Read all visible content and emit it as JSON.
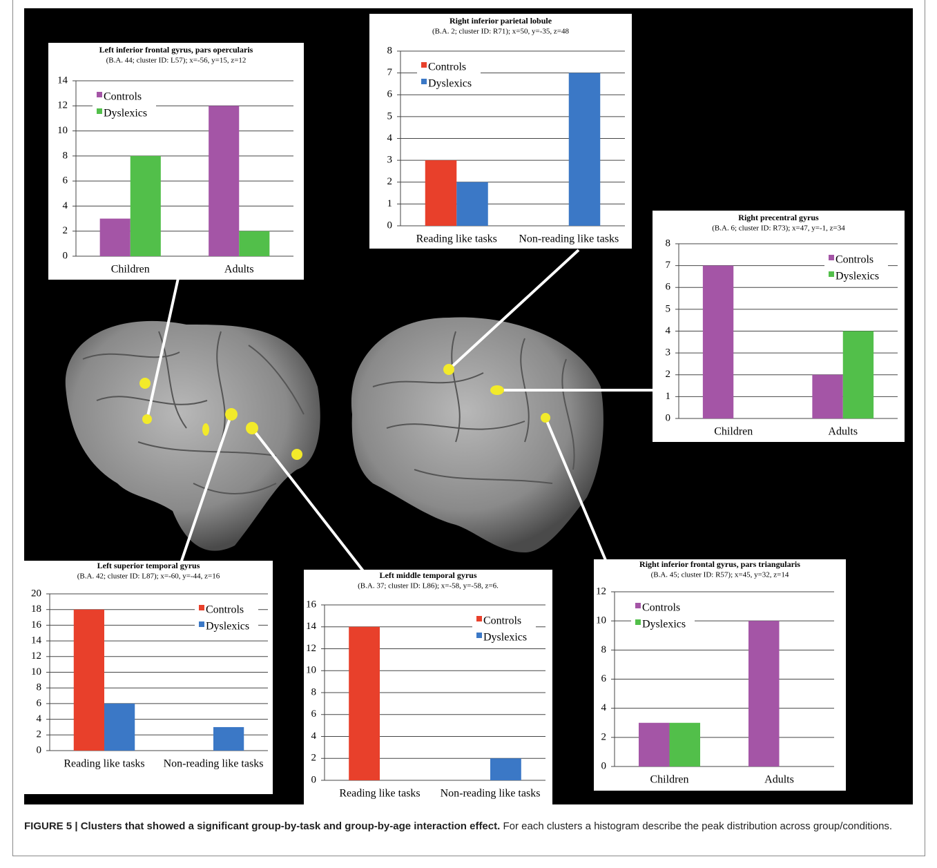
{
  "chart_data": [
    {
      "type": "bar",
      "title": "Left inferior frontal gyrus, pars opercularis",
      "subtitle": "(B.A. 44; cluster ID: L57); x=-56, y=15, z=12",
      "categories": [
        "Children",
        "Adults"
      ],
      "series": [
        {
          "name": "Controls",
          "color": "#a455a6",
          "values": [
            3,
            12
          ]
        },
        {
          "name": "Dyslexics",
          "color": "#52bf4a",
          "values": [
            8,
            2
          ]
        }
      ],
      "ylim": [
        0,
        14
      ],
      "yticks": [
        0,
        2,
        4,
        6,
        8,
        10,
        12,
        14
      ],
      "grid": true,
      "legend": "upper left"
    },
    {
      "type": "bar",
      "title": "Right inferior parietal lobule",
      "subtitle": "(B.A. 2; cluster ID: R71); x=50, y=-35, z=48",
      "categories": [
        "Reading like tasks",
        "Non-reading like tasks"
      ],
      "series": [
        {
          "name": "Controls",
          "color": "#e8402b",
          "values": [
            3,
            0
          ]
        },
        {
          "name": "Dyslexics",
          "color": "#3b78c6",
          "values": [
            2,
            7
          ]
        }
      ],
      "ylim": [
        0,
        8
      ],
      "yticks": [
        0,
        1,
        2,
        3,
        4,
        5,
        6,
        7,
        8
      ],
      "grid": true,
      "legend": "upper left"
    },
    {
      "type": "bar",
      "title": "Right precentral gyrus",
      "subtitle": "(B.A. 6; cluster ID: R73); x=47, y=-1, z=34",
      "categories": [
        "Children",
        "Adults"
      ],
      "series": [
        {
          "name": "Controls",
          "color": "#a455a6",
          "values": [
            7,
            2
          ]
        },
        {
          "name": "Dyslexics",
          "color": "#52bf4a",
          "values": [
            0,
            4
          ]
        }
      ],
      "ylim": [
        0,
        8
      ],
      "yticks": [
        0,
        1,
        2,
        3,
        4,
        5,
        6,
        7,
        8
      ],
      "grid": true,
      "legend": "upper right"
    },
    {
      "type": "bar",
      "title": "Left superior temporal gyrus",
      "subtitle": "(B.A. 42; cluster ID: L87); x=-60, y=-44, z=16",
      "categories": [
        "Reading like tasks",
        "Non-reading like tasks"
      ],
      "series": [
        {
          "name": "Controls",
          "color": "#e8402b",
          "values": [
            18,
            0
          ]
        },
        {
          "name": "Dyslexics",
          "color": "#3b78c6",
          "values": [
            6,
            3
          ]
        }
      ],
      "ylim": [
        0,
        20
      ],
      "yticks": [
        0,
        2,
        4,
        6,
        8,
        10,
        12,
        14,
        16,
        18,
        20
      ],
      "grid": true,
      "legend": "upper right"
    },
    {
      "type": "bar",
      "title": "Left middle temporal gyrus",
      "subtitle": "(B.A. 37; cluster ID: L86); x=-58, y=-58, z=6.",
      "categories": [
        "Reading like tasks",
        "Non-reading like tasks"
      ],
      "series": [
        {
          "name": "Controls",
          "color": "#e8402b",
          "values": [
            14,
            0
          ]
        },
        {
          "name": "Dyslexics",
          "color": "#3b78c6",
          "values": [
            0,
            2
          ]
        }
      ],
      "ylim": [
        0,
        16
      ],
      "yticks": [
        0,
        2,
        4,
        6,
        8,
        10,
        12,
        14,
        16
      ],
      "grid": true,
      "legend": "upper right"
    },
    {
      "type": "bar",
      "title": "Right inferior frontal gyrus, pars triangularis",
      "subtitle": "(B.A. 45; cluster ID: R57); x=45, y=32, z=14",
      "categories": [
        "Children",
        "Adults"
      ],
      "series": [
        {
          "name": "Controls",
          "color": "#a455a6",
          "values": [
            3,
            10
          ]
        },
        {
          "name": "Dyslexics",
          "color": "#52bf4a",
          "values": [
            3,
            0
          ]
        }
      ],
      "ylim": [
        0,
        12
      ],
      "yticks": [
        0,
        2,
        4,
        6,
        8,
        10,
        12
      ],
      "grid": true,
      "legend": "upper left"
    }
  ],
  "caption": {
    "label": "FIGURE 5 | Clusters that showed a significant group-by-task and group-by-age interaction effect.",
    "text": "For each clusters a histogram describe the peak distribution across group/conditions."
  }
}
